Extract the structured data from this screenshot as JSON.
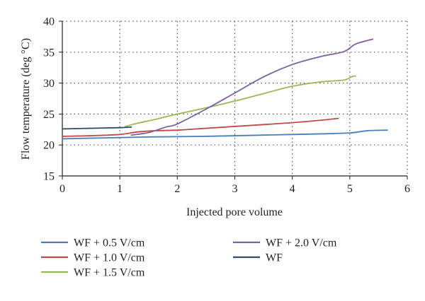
{
  "chart_data": {
    "type": "line",
    "title": "",
    "xlabel": "Injected pore volume",
    "ylabel": "Flow temperature (deg °C)",
    "xlim": [
      0,
      6
    ],
    "ylim": [
      15,
      40
    ],
    "x_ticks": [
      "0",
      "1",
      "2",
      "3",
      "4",
      "5",
      "6"
    ],
    "y_ticks": [
      "15",
      "20",
      "25",
      "30",
      "35",
      "40"
    ],
    "grid": "dotted",
    "legend_position": "bottom",
    "series": [
      {
        "name": "WF + 0.5 V/cm",
        "color": "#4a7ebb",
        "x": [
          0,
          0.5,
          1,
          1.5,
          2,
          2.5,
          3,
          3.5,
          4,
          4.5,
          5,
          5.3,
          5.65
        ],
        "y": [
          21.0,
          21.1,
          21.2,
          21.3,
          21.35,
          21.4,
          21.5,
          21.6,
          21.7,
          21.8,
          21.95,
          22.3,
          22.4
        ]
      },
      {
        "name": "WF + 1.0 V/cm",
        "color": "#be4b48",
        "x": [
          0,
          0.5,
          1,
          1.3,
          1.6,
          2,
          2.5,
          3,
          3.5,
          4,
          4.5,
          4.8
        ],
        "y": [
          21.4,
          21.5,
          21.7,
          22.1,
          22.3,
          22.4,
          22.7,
          23.0,
          23.3,
          23.6,
          24.0,
          24.3
        ]
      },
      {
        "name": "WF + 1.5 V/cm",
        "color": "#98b954",
        "x": [
          1.1,
          1.3,
          1.6,
          2,
          2.5,
          3,
          3.5,
          4,
          4.5,
          4.9,
          5.05,
          5.1
        ],
        "y": [
          23.0,
          23.5,
          24.1,
          25.0,
          26.0,
          27.1,
          28.3,
          29.5,
          30.2,
          30.5,
          31.1,
          31.1
        ]
      },
      {
        "name": "WF + 2.0 V/cm",
        "color": "#7d60a0",
        "x": [
          1.2,
          1.5,
          1.8,
          2,
          2.5,
          3,
          3.5,
          4,
          4.5,
          4.9,
          5.1,
          5.4
        ],
        "y": [
          21.6,
          22.0,
          22.9,
          23.4,
          25.8,
          28.4,
          31.0,
          33.0,
          34.3,
          35.1,
          36.3,
          37.1
        ]
      },
      {
        "name": "WF",
        "color": "#2f4d6e",
        "x": [
          0,
          0.5,
          1,
          1.2
        ],
        "y": [
          22.6,
          22.7,
          22.8,
          22.9
        ]
      }
    ]
  }
}
